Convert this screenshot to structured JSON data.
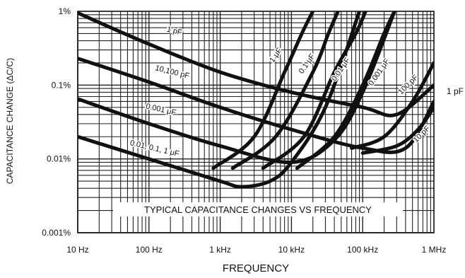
{
  "chart_data": {
    "type": "line",
    "title": "TYPICAL CAPACITANCE CHANGES VS FREQUENCY",
    "xlabel": "FREQUENCY",
    "ylabel": "CAPACITANCE CHANGE (ΔC/C)",
    "x_scale": "log",
    "y_scale": "log",
    "xlim": [
      "10 Hz",
      "1 MHz"
    ],
    "ylim": [
      "0.001%",
      "1%"
    ],
    "x_ticks": [
      "10 Hz",
      "100 Hz",
      "1 kHz",
      "10 kHz",
      "100 kHz",
      "1 MHz"
    ],
    "y_ticks": [
      "1%",
      "0.1%",
      "0.01%",
      "0.001%"
    ],
    "grid": true,
    "series": [
      {
        "name": "1 pF",
        "points": [
          [
            "10 Hz",
            "0.95%"
          ],
          [
            "100 Hz",
            "0.36%"
          ],
          [
            "1 kHz",
            "0.15%"
          ],
          [
            "10 kHz",
            "0.08%"
          ],
          [
            "100 kHz",
            "0.05%"
          ],
          [
            "300 kHz",
            "0.04%"
          ],
          [
            "1 MHz",
            "0.1%"
          ]
        ]
      },
      {
        "name": "10,100 pF",
        "points": [
          [
            "10 Hz",
            "0.23%"
          ],
          [
            "100 Hz",
            "0.11%"
          ],
          [
            "1 kHz",
            "0.05%"
          ],
          [
            "10 kHz",
            "0.025%"
          ],
          [
            "100 kHz",
            "0.014%"
          ],
          [
            "400 kHz",
            "0.014%"
          ],
          [
            "1 MHz",
            "0.06%"
          ]
        ]
      },
      {
        "name": "0.001 μF",
        "points": [
          [
            "10 Hz",
            "0.065%"
          ],
          [
            "100 Hz",
            "0.03%"
          ],
          [
            "1 kHz",
            "0.015%"
          ],
          [
            "10 kHz",
            "0.009%"
          ],
          [
            "40 kHz",
            "0.018%"
          ],
          [
            "100 kHz",
            "0.08%"
          ],
          [
            "280 kHz",
            "1%"
          ]
        ]
      },
      {
        "name": "0.01, 0.1, 1 μF",
        "points": [
          [
            "10 Hz",
            "0.02%"
          ],
          [
            "100 Hz",
            "0.01%"
          ],
          [
            "1 kHz",
            "0.005%"
          ],
          [
            "2 kHz",
            "0.0042%"
          ],
          [
            "5 kHz",
            "0.005%"
          ],
          [
            "10 kHz",
            "0.009%"
          ],
          [
            "30 kHz",
            "0.05%"
          ],
          [
            "90 kHz",
            "1%"
          ]
        ]
      },
      {
        "name": "1 μF",
        "points": [
          [
            "800 Hz",
            "0.0075%"
          ],
          [
            "3 kHz",
            "0.02%"
          ],
          [
            "8 kHz",
            "0.15%"
          ],
          [
            "14 kHz",
            "0.5%"
          ],
          [
            "20 kHz",
            "1%"
          ]
        ]
      },
      {
        "name": "0.1 μF",
        "points": [
          [
            "1.5 kHz",
            "0.0075%"
          ],
          [
            "6 kHz",
            "0.02%"
          ],
          [
            "20 kHz",
            "0.15%"
          ],
          [
            "33 kHz",
            "0.5%"
          ],
          [
            "45 kHz",
            "1%"
          ]
        ]
      },
      {
        "name": "0.01 μF",
        "points": [
          [
            "4 kHz",
            "0.0075%"
          ],
          [
            "15 kHz",
            "0.02%"
          ],
          [
            "40 kHz",
            "0.15%"
          ],
          [
            "80 kHz",
            "0.5%"
          ],
          [
            "110 kHz",
            "1%"
          ]
        ]
      },
      {
        "name": "0.001 μF",
        "points": [
          [
            "12 kHz",
            "0.0075%"
          ],
          [
            "40 kHz",
            "0.02%"
          ],
          [
            "100 kHz",
            "0.1%"
          ],
          [
            "200 kHz",
            "0.5%"
          ],
          [
            "280 kHz",
            "1%"
          ]
        ]
      },
      {
        "name": "100 pF",
        "points": [
          [
            "70 kHz",
            "0.014%"
          ],
          [
            "200 kHz",
            "0.02%"
          ],
          [
            "500 kHz",
            "0.06%"
          ],
          [
            "1 MHz",
            "0.2%"
          ]
        ]
      },
      {
        "name": "10 pF",
        "points": [
          [
            "100 kHz",
            "0.012%"
          ],
          [
            "300 kHz",
            "0.015%"
          ],
          [
            "600 kHz",
            "0.025%"
          ],
          [
            "1 MHz",
            "0.05%"
          ]
        ]
      }
    ]
  }
}
